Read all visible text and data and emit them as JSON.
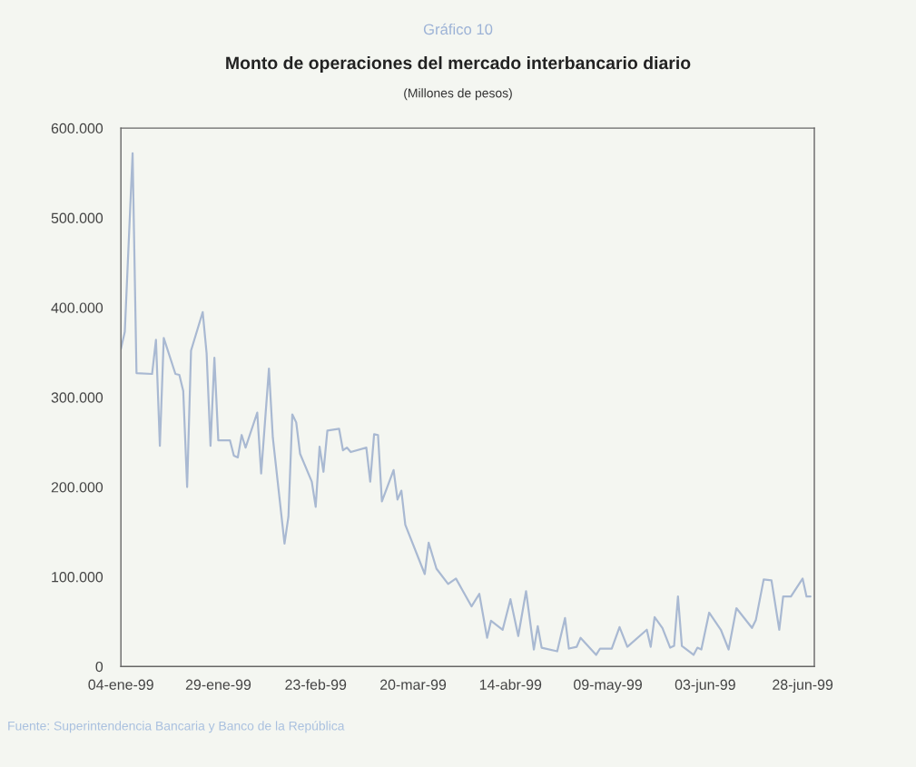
{
  "chart_data": {
    "type": "line",
    "title": "Gráfico 10",
    "subtitle": "Monto de operaciones del mercado interbancario diario",
    "ylabel": "(Millones de pesos)",
    "annotations": [
      "Fuente: Superintendencia Bancaria y Banco de la República"
    ],
    "x": [
      "1999-01-04",
      "1999-01-05",
      "1999-01-07",
      "1999-01-08",
      "1999-01-12",
      "1999-01-13",
      "1999-01-14",
      "1999-01-15",
      "1999-01-18",
      "1999-01-19",
      "1999-01-20",
      "1999-01-21",
      "1999-01-22",
      "1999-01-25",
      "1999-01-26",
      "1999-01-27",
      "1999-01-28",
      "1999-01-29",
      "1999-02-01",
      "1999-02-02",
      "1999-02-03",
      "1999-02-04",
      "1999-02-05",
      "1999-02-08",
      "1999-02-09",
      "1999-02-11",
      "1999-02-12",
      "1999-02-15",
      "1999-02-16",
      "1999-02-17",
      "1999-02-18",
      "1999-02-19",
      "1999-02-22",
      "1999-02-23",
      "1999-02-24",
      "1999-02-25",
      "1999-02-26",
      "1999-03-01",
      "1999-03-02",
      "1999-03-03",
      "1999-03-04",
      "1999-03-08",
      "1999-03-09",
      "1999-03-10",
      "1999-03-11",
      "1999-03-12",
      "1999-03-15",
      "1999-03-16",
      "1999-03-17",
      "1999-03-18",
      "1999-03-23",
      "1999-03-24",
      "1999-03-26",
      "1999-03-29",
      "1999-03-31",
      "1999-04-04",
      "1999-04-06",
      "1999-04-08",
      "1999-04-09",
      "1999-04-12",
      "1999-04-14",
      "1999-04-16",
      "1999-04-18",
      "1999-04-20",
      "1999-04-21",
      "1999-04-22",
      "1999-04-26",
      "1999-04-28",
      "1999-04-29",
      "1999-05-01",
      "1999-05-02",
      "1999-05-06",
      "1999-05-07",
      "1999-05-10",
      "1999-05-12",
      "1999-05-14",
      "1999-05-19",
      "1999-05-20",
      "1999-05-21",
      "1999-05-23",
      "1999-05-25",
      "1999-05-26",
      "1999-05-27",
      "1999-05-28",
      "1999-05-31",
      "1999-06-01",
      "1999-06-02",
      "1999-06-04",
      "1999-06-07",
      "1999-06-09",
      "1999-06-11",
      "1999-06-15",
      "1999-06-16",
      "1999-06-18",
      "1999-06-20",
      "1999-06-22",
      "1999-06-23",
      "1999-06-25",
      "1999-06-28",
      "1999-06-29",
      "1999-06-30"
    ],
    "series": [
      {
        "color": "#a9b9d2",
        "values": [
          354000,
          373000,
          572000,
          327000,
          326000,
          364000,
          246000,
          366000,
          326000,
          325000,
          307000,
          200000,
          352000,
          395000,
          349000,
          246000,
          344000,
          252000,
          252000,
          235000,
          233000,
          258000,
          244000,
          283000,
          215000,
          332000,
          255000,
          137000,
          167000,
          281000,
          272000,
          237000,
          206000,
          178000,
          245000,
          217000,
          263000,
          265000,
          241000,
          244000,
          239000,
          244000,
          206000,
          259000,
          258000,
          184000,
          219000,
          186000,
          196000,
          158000,
          103000,
          138000,
          109000,
          92000,
          98000,
          67000,
          81000,
          32000,
          51000,
          41000,
          75000,
          34000,
          84000,
          19000,
          45000,
          21000,
          17000,
          54000,
          20000,
          22000,
          32000,
          13000,
          20000,
          20000,
          44000,
          22000,
          41000,
          22000,
          55000,
          43000,
          21000,
          23000,
          78000,
          23000,
          13000,
          21000,
          19000,
          60000,
          41000,
          19000,
          65000,
          43000,
          52000,
          97000,
          96000,
          41000,
          78000,
          78000,
          98000,
          78000,
          78000
        ]
      }
    ],
    "xlim": [
      "1999-01-04",
      "1999-07-01"
    ],
    "xticks": [
      {
        "value": "1999-01-04",
        "label": "04-ene-99"
      },
      {
        "value": "1999-01-29",
        "label": "29-ene-99"
      },
      {
        "value": "1999-02-23",
        "label": "23-feb-99"
      },
      {
        "value": "1999-03-20",
        "label": "20-mar-99"
      },
      {
        "value": "1999-04-14",
        "label": "14-abr-99"
      },
      {
        "value": "1999-05-09",
        "label": "09-may-99"
      },
      {
        "value": "1999-06-03",
        "label": "03-jun-99"
      },
      {
        "value": "1999-06-28",
        "label": "28-jun-99"
      }
    ],
    "ylim": [
      0,
      600000
    ],
    "yticks": [
      0,
      {
        "value": 100000,
        "label": "100.000"
      },
      {
        "value": 200000,
        "label": "200.000"
      },
      {
        "value": 300000,
        "label": "300.000"
      },
      {
        "value": 400000,
        "label": "400.000"
      },
      {
        "value": 500000,
        "label": "500.000"
      },
      {
        "value": 600000,
        "label": "600.000"
      }
    ],
    "grid": false,
    "marker": "none",
    "line_style": "solid"
  }
}
